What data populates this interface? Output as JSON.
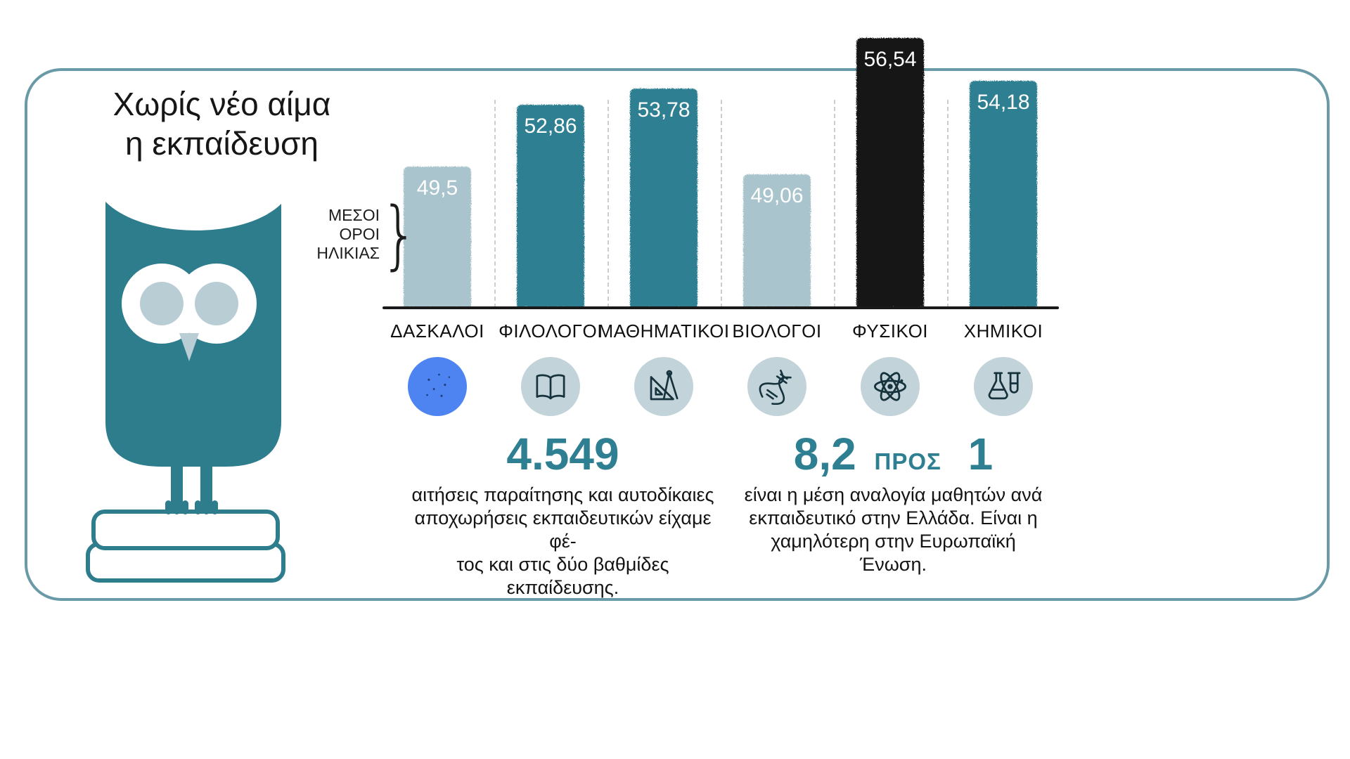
{
  "colors": {
    "teal": "#2e7f91",
    "light_blue_bar": "#a9c4cd",
    "black_bar": "#141414",
    "panel_border": "#6a9aa7",
    "icon_circle_bg": "#c2d4da",
    "icon_stroke": "#16323c",
    "blue_circle": "#4d84f2",
    "owl_body": "#2e7d8d",
    "owl_eyes": "#b9cdd4",
    "bar_value_text": "#ffffff"
  },
  "title": {
    "line1": "Χωρίς νέο αίμα",
    "line2": "η εκπαίδευση"
  },
  "axis_annotation": {
    "line1": "ΜΕΣΟΙ",
    "line2": "ΟΡΟΙ",
    "line3": "ΗΛΙΚΙΑΣ",
    "brace": "}"
  },
  "chart_data": {
    "type": "bar",
    "title": "Χωρίς νέο αίμα η εκπαίδευση",
    "ylabel": "ΜΕΣΟΙ ΟΡΟΙ ΗΛΙΚΙΑΣ",
    "categories": [
      "ΔΑΣΚΑΛΟΙ",
      "ΦΙΛΟΛΟΓΟΙ",
      "ΜΑΘΗΜΑΤΙΚΟΙ",
      "ΒΙΟΛΟΓΟΙ",
      "ΦΥΣΙΚΟΙ",
      "ΧΗΜΙΚΟΙ"
    ],
    "values": [
      49.5,
      52.86,
      53.78,
      49.06,
      56.54,
      54.18
    ],
    "value_labels": [
      "49,5",
      "52,86",
      "53,78",
      "49,06",
      "56,54",
      "54,18"
    ],
    "bar_colors": [
      "#a9c4cd",
      "#2e7f91",
      "#2e7f91",
      "#a9c4cd",
      "#141414",
      "#2e7f91"
    ],
    "icons": [
      "globe-icon",
      "book-icon",
      "geometry-icon",
      "dna-icon",
      "atom-icon",
      "chemistry-icon"
    ],
    "icon_bg": [
      "#4d84f2",
      "#c2d4da",
      "#c2d4da",
      "#c2d4da",
      "#c2d4da",
      "#c2d4da"
    ],
    "ylim": [
      41.8,
      57.5
    ],
    "grid": false,
    "legend": false,
    "baseline": true,
    "separators": "dashed"
  },
  "stats": {
    "resignations": {
      "number": "4.549",
      "lines": [
        "αιτήσεις παραίτησης και αυτοδίκαιες",
        "αποχωρήσεις εκπαιδευτικών είχαμε φέ-",
        "τος και στις δύο βαθμίδες εκπαίδευσης."
      ]
    },
    "ratio": {
      "number_left": "8,2",
      "connector": "ΠΡΟΣ",
      "number_right": "1",
      "lines": [
        "είναι η μέση αναλογία μαθητών ανά",
        "εκπαιδευτικό στην Ελλάδα. Είναι η",
        "χαμηλότερη στην Ευρωπαϊκή Ένωση."
      ]
    }
  }
}
